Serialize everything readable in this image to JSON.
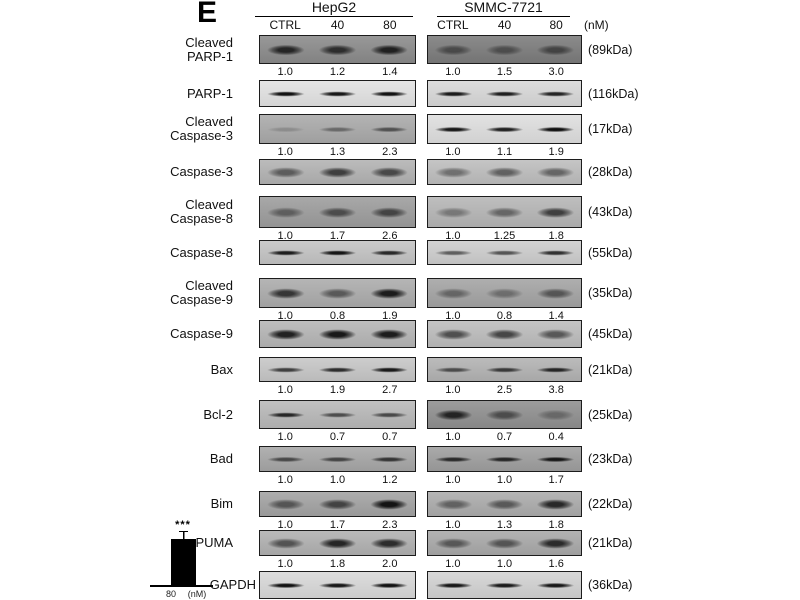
{
  "panel_label": "E",
  "header": {
    "groups": [
      {
        "name": "HepG2"
      },
      {
        "name": "SMMC-7721"
      }
    ],
    "lane_labels": [
      "CTRL",
      "40",
      "80"
    ],
    "dose_unit": "(nM)"
  },
  "rows": [
    {
      "label_lines": [
        "Cleaved",
        "PARP-1"
      ],
      "kda": "(89kDa)",
      "values": [
        [
          "1.0",
          "1.2",
          "1.4"
        ],
        [
          "1.0",
          "1.5",
          "3.0"
        ]
      ],
      "strips": [
        {
          "tone": "#8a8a8a",
          "bands": [
            0.78,
            0.72,
            0.82
          ],
          "thin": false
        },
        {
          "tone": "#7b7b7b",
          "bands": [
            0.45,
            0.42,
            0.5
          ],
          "thin": false
        }
      ]
    },
    {
      "label_lines": [
        "PARP-1"
      ],
      "kda": "(116kDa)",
      "values": null,
      "strips": [
        {
          "tone": "#e2e2e2",
          "bands": [
            0.95,
            0.92,
            0.95
          ],
          "thin": true
        },
        {
          "tone": "#d8d8d8",
          "bands": [
            0.9,
            0.88,
            0.85
          ],
          "thin": true
        }
      ]
    },
    {
      "label_lines": [
        "Cleaved",
        "Caspase-3"
      ],
      "kda": "(17kDa)",
      "values": [
        [
          "1.0",
          "1.3",
          "2.3"
        ],
        [
          "1.0",
          "1.1",
          "1.9"
        ]
      ],
      "strips": [
        {
          "tone": "#a9a9a9",
          "bands": [
            0.18,
            0.4,
            0.55
          ],
          "thin": true
        },
        {
          "tone": "#dedede",
          "bands": [
            0.92,
            0.88,
            0.96
          ],
          "thin": true
        }
      ]
    },
    {
      "label_lines": [
        "Caspase-3"
      ],
      "kda": "(28kDa)",
      "values": null,
      "strips": [
        {
          "tone": "#b2b2b2",
          "bands": [
            0.5,
            0.68,
            0.62
          ],
          "thin": false
        },
        {
          "tone": "#bdbdbd",
          "bands": [
            0.42,
            0.5,
            0.48
          ],
          "thin": false
        }
      ]
    },
    {
      "label_lines": [
        "Cleaved",
        "Caspase-8"
      ],
      "kda": "(43kDa)",
      "values": [
        [
          "1.0",
          "1.7",
          "2.6"
        ],
        [
          "1.0",
          "1.25",
          "1.8"
        ]
      ],
      "strips": [
        {
          "tone": "#9c9c9c",
          "bands": [
            0.42,
            0.55,
            0.6
          ],
          "thin": false
        },
        {
          "tone": "#b5b5b5",
          "bands": [
            0.35,
            0.45,
            0.68
          ],
          "thin": false
        }
      ]
    },
    {
      "label_lines": [
        "Caspase-8"
      ],
      "kda": "(55kDa)",
      "values": null,
      "strips": [
        {
          "tone": "#c3c3c3",
          "bands": [
            0.88,
            0.92,
            0.82
          ],
          "thin": true
        },
        {
          "tone": "#cdcdcd",
          "bands": [
            0.55,
            0.6,
            0.78
          ],
          "thin": true
        }
      ]
    },
    {
      "label_lines": [
        "Cleaved",
        "Caspase-9"
      ],
      "kda": "(35kDa)",
      "values": [
        [
          "1.0",
          "0.8",
          "1.9"
        ],
        [
          "1.0",
          "0.8",
          "1.4"
        ]
      ],
      "strips": [
        {
          "tone": "#ababab",
          "bands": [
            0.72,
            0.5,
            0.88
          ],
          "thin": false
        },
        {
          "tone": "#a3a3a3",
          "bands": [
            0.4,
            0.35,
            0.5
          ],
          "thin": false
        }
      ]
    },
    {
      "label_lines": [
        "Caspase-9"
      ],
      "kda": "(45kDa)",
      "values": null,
      "strips": [
        {
          "tone": "#b5b5b5",
          "bands": [
            0.85,
            0.9,
            0.88
          ],
          "thin": false
        },
        {
          "tone": "#bcbcbc",
          "bands": [
            0.6,
            0.65,
            0.55
          ],
          "thin": false
        }
      ]
    },
    {
      "label_lines": [
        "Bax"
      ],
      "kda": "(21kDa)",
      "values": [
        [
          "1.0",
          "1.9",
          "2.7"
        ],
        [
          "1.0",
          "2.5",
          "3.8"
        ]
      ],
      "strips": [
        {
          "tone": "#c6c6c6",
          "bands": [
            0.7,
            0.8,
            0.9
          ],
          "thin": true
        },
        {
          "tone": "#b2b2b2",
          "bands": [
            0.6,
            0.7,
            0.82
          ],
          "thin": true
        }
      ]
    },
    {
      "label_lines": [
        "Bcl-2"
      ],
      "kda": "(25kDa)",
      "values": [
        [
          "1.0",
          "0.7",
          "0.7"
        ],
        [
          "1.0",
          "0.7",
          "0.4"
        ]
      ],
      "strips": [
        {
          "tone": "#b8b8b8",
          "bands": [
            0.82,
            0.6,
            0.62
          ],
          "thin": true
        },
        {
          "tone": "#8f8f8f",
          "bands": [
            0.8,
            0.5,
            0.3
          ],
          "thin": false
        }
      ]
    },
    {
      "label_lines": [
        "Bad"
      ],
      "kda": "(23kDa)",
      "values": [
        [
          "1.0",
          "1.0",
          "1.2"
        ],
        [
          "1.0",
          "1.0",
          "1.7"
        ]
      ],
      "strips": [
        {
          "tone": "#a6a6a6",
          "bands": [
            0.6,
            0.62,
            0.72
          ],
          "thin": true
        },
        {
          "tone": "#9e9e9e",
          "bands": [
            0.78,
            0.8,
            0.9
          ],
          "thin": true
        }
      ]
    },
    {
      "label_lines": [
        "Bim"
      ],
      "kda": "(22kDa)",
      "values": [
        [
          "1.0",
          "1.7",
          "2.3"
        ],
        [
          "1.0",
          "1.3",
          "1.8"
        ]
      ],
      "strips": [
        {
          "tone": "#a2a2a2",
          "bands": [
            0.5,
            0.62,
            0.92
          ],
          "thin": false
        },
        {
          "tone": "#ababab",
          "bands": [
            0.45,
            0.5,
            0.8
          ],
          "thin": false
        }
      ]
    },
    {
      "label_lines": [
        "PUMA"
      ],
      "kda": "(21kDa)",
      "values": [
        [
          "1.0",
          "1.8",
          "2.0"
        ],
        [
          "1.0",
          "1.0",
          "1.6"
        ]
      ],
      "strips": [
        {
          "tone": "#b0b0b0",
          "bands": [
            0.55,
            0.82,
            0.78
          ],
          "thin": false
        },
        {
          "tone": "#a8a8a8",
          "bands": [
            0.5,
            0.52,
            0.78
          ],
          "thin": false
        }
      ]
    },
    {
      "label_lines": [
        "GAPDH"
      ],
      "kda": "(36kDa)",
      "values": null,
      "strips": [
        {
          "tone": "#d8d8d8",
          "bands": [
            0.95,
            0.92,
            0.95
          ],
          "thin": true
        },
        {
          "tone": "#d2d2d2",
          "bands": [
            0.92,
            0.9,
            0.92
          ],
          "thin": true
        }
      ]
    }
  ],
  "inset_chart": {
    "significance": "***",
    "x_tick": "80",
    "x_unit": "(nM)",
    "bar_color": "#000000"
  }
}
